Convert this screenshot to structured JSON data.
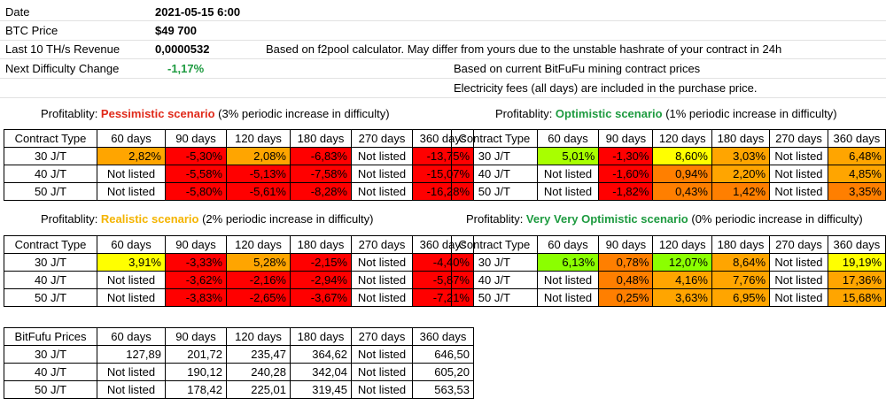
{
  "info": {
    "date_label": "Date",
    "date_value": "2021-05-15 6:00",
    "btc_label": "BTC Price",
    "btc_value": "$49 700",
    "rev_label": "Last 10 TH/s Revenue",
    "rev_value": "0,0000532",
    "diff_label": "Next Difficulty Change",
    "diff_value": "-1,17%",
    "note1": "Based on f2pool calculator. May differ from yours due to the unstable hashrate of your contract in 24h",
    "note2": "Based on current BitFuFu mining contract prices",
    "note3": "Electricity fees (all days) are included in the purchase price."
  },
  "colors": {
    "red": "#ff0000",
    "orange": "#ffa500",
    "yellow": "#ffff00",
    "lime": "#a8ff00",
    "dark_orange": "#ff7f00",
    "bright_green": "#8bff00"
  },
  "titles": {
    "pess": {
      "pre": "Profitablity: ",
      "scn": "Pessimistic scenario",
      "post": " (3% periodic increase in difficulty)"
    },
    "opt": {
      "pre": "Profitablity: ",
      "scn": "Optimistic scenario",
      "post": " (1% periodic increase in difficulty)"
    },
    "real": {
      "pre": "Profitablity: ",
      "scn": "Realistic scenario",
      "post": " (2% periodic increase in difficulty)"
    },
    "vvo": {
      "pre": "Profitablity: ",
      "scn": "Very Very Optimistic scenario",
      "post": " (0% periodic increase in difficulty)"
    }
  },
  "headers": [
    "Contract Type",
    "60 days",
    "90 days",
    "120 days",
    "180 days",
    "270 days",
    "360 days"
  ],
  "prices_header": "BitFufu Prices",
  "rows": [
    "30 J/T",
    "40 J/T",
    "50 J/T"
  ],
  "pess": [
    [
      "2,82%",
      "-5,30%",
      "2,08%",
      "-6,83%",
      "Not listed",
      "-13,75%"
    ],
    [
      "Not listed",
      "-5,58%",
      "-5,13%",
      "-7,58%",
      "Not listed",
      "-15,07%"
    ],
    [
      "Not listed",
      "-5,80%",
      "-5,61%",
      "-8,28%",
      "Not listed",
      "-16,28%"
    ]
  ],
  "opt": [
    [
      "5,01%",
      "-1,30%",
      "8,60%",
      "3,03%",
      "Not listed",
      "6,48%"
    ],
    [
      "Not listed",
      "-1,60%",
      "0,94%",
      "2,20%",
      "Not listed",
      "4,85%"
    ],
    [
      "Not listed",
      "-1,82%",
      "0,43%",
      "1,42%",
      "Not listed",
      "3,35%"
    ]
  ],
  "real": [
    [
      "3,91%",
      "-3,33%",
      "5,28%",
      "-2,15%",
      "Not listed",
      "-4,40%"
    ],
    [
      "Not listed",
      "-3,62%",
      "-2,16%",
      "-2,94%",
      "Not listed",
      "-5,87%"
    ],
    [
      "Not listed",
      "-3,83%",
      "-2,65%",
      "-3,67%",
      "Not listed",
      "-7,21%"
    ]
  ],
  "vvo": [
    [
      "6,13%",
      "0,78%",
      "12,07%",
      "8,64%",
      "Not listed",
      "19,19%"
    ],
    [
      "Not listed",
      "0,48%",
      "4,16%",
      "7,76%",
      "Not listed",
      "17,36%"
    ],
    [
      "Not listed",
      "0,25%",
      "3,63%",
      "6,95%",
      "Not listed",
      "15,68%"
    ]
  ],
  "prices": [
    [
      "127,89",
      "201,72",
      "235,47",
      "364,62",
      "Not listed",
      "646,50"
    ],
    [
      "Not listed",
      "190,12",
      "240,28",
      "342,04",
      "Not listed",
      "605,20"
    ],
    [
      "Not listed",
      "178,42",
      "225,01",
      "319,45",
      "Not listed",
      "563,53"
    ]
  ]
}
